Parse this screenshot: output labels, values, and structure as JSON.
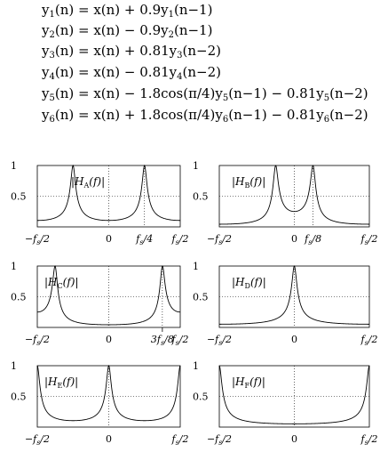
{
  "equations": [
    {
      "lhs": "y",
      "idx": "1",
      "rhs": "(n) = x(n) + 0.9y",
      "idx2": "1",
      "tail": "(n−1)"
    },
    {
      "lhs": "y",
      "idx": "2",
      "rhs": "(n) = x(n) − 0.9y",
      "idx2": "2",
      "tail": "(n−1)"
    },
    {
      "lhs": "y",
      "idx": "3",
      "rhs": "(n) = x(n) + 0.81y",
      "idx2": "3",
      "tail": "(n−2)"
    },
    {
      "lhs": "y",
      "idx": "4",
      "rhs": "(n) = x(n) − 0.81y",
      "idx2": "4",
      "tail": "(n−2)"
    },
    {
      "lhs": "y",
      "idx": "5",
      "rhs": "(n) = x(n) − 1.8cos(π/4)y",
      "idx2": "5",
      "tail": "(n−1) − 0.81y",
      "idx3": "5",
      "tail2": "(n−2)"
    },
    {
      "lhs": "y",
      "idx": "6",
      "rhs": "(n) = x(n) + 1.8cos(π/4)y",
      "idx2": "6",
      "tail": "(n−1) − 0.81y",
      "idx3": "6",
      "tail2": "(n−2)"
    }
  ],
  "chart_data": [
    {
      "type": "line",
      "label": "|H",
      "label_sub": "A",
      "label_tail": "(f)|",
      "x_ticks": [
        "−f/2",
        "0",
        "f/4",
        "f/2"
      ],
      "y_ticks": [
        "1",
        "0.5"
      ],
      "xlim": [
        -0.5,
        0.5
      ],
      "ylim": [
        0,
        1
      ],
      "pole_r": 0.9,
      "pole_theta": 0
    },
    {
      "type": "line",
      "label": "|H",
      "label_sub": "B",
      "label_tail": "(f)|",
      "x_ticks": [
        "−f/2",
        "0",
        "f/8",
        "f/2"
      ],
      "y_ticks": [
        "1",
        "0.5"
      ],
      "xlim": [
        -0.5,
        0.5
      ],
      "ylim": [
        0,
        1
      ]
    },
    {
      "type": "line",
      "label": "|H",
      "label_sub": "C",
      "label_tail": "(f)|",
      "x_ticks": [
        "−f/2",
        "0",
        "3f/8",
        "f/2"
      ],
      "y_ticks": [
        "1",
        "0.5"
      ],
      "xlim": [
        -0.5,
        0.5
      ],
      "ylim": [
        0,
        1
      ]
    },
    {
      "type": "line",
      "label": "|H",
      "label_sub": "D",
      "label_tail": "(f)|",
      "x_ticks": [
        "−f/2",
        "0",
        "f/2"
      ],
      "y_ticks": [
        "1",
        "0.5"
      ],
      "xlim": [
        -0.5,
        0.5
      ],
      "ylim": [
        0,
        1
      ]
    },
    {
      "type": "line",
      "label": "|H",
      "label_sub": "E",
      "label_tail": "(f)|",
      "x_ticks": [
        "−f/2",
        "0",
        "f/2"
      ],
      "y_ticks": [
        "1",
        "0.5"
      ],
      "xlim": [
        -0.5,
        0.5
      ],
      "ylim": [
        0,
        1
      ]
    },
    {
      "type": "line",
      "label": "|H",
      "label_sub": "F",
      "label_tail": "(f)|",
      "x_ticks": [
        "−f/2",
        "0",
        "f/2"
      ],
      "y_ticks": [
        "1",
        "0.5"
      ],
      "xlim": [
        -0.5,
        0.5
      ],
      "ylim": [
        0,
        1
      ]
    }
  ]
}
